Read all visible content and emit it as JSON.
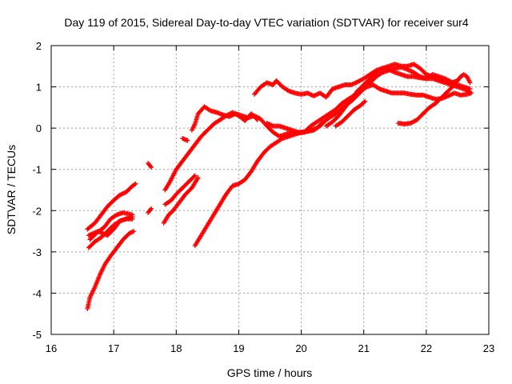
{
  "chart_data": {
    "type": "scatter",
    "title": "Day 119 of 2015, Sidereal Day-to-day VTEC variation (SDTVAR) for receiver sur4",
    "xlabel": "GPS time / hours",
    "ylabel": "SDTVAR / TECUs",
    "xlim": [
      16,
      23
    ],
    "ylim": [
      -5,
      2
    ],
    "xticks": [
      "16",
      "17",
      "18",
      "19",
      "20",
      "21",
      "22",
      "23"
    ],
    "yticks": [
      "-5",
      "-4",
      "-3",
      "-2",
      "-1",
      "0",
      "1",
      "2"
    ],
    "grid": true,
    "marker": "plus",
    "colors": {
      "series": "#ff0000",
      "grid": "#a0a0a0",
      "axis": "#000000"
    },
    "tracks": [
      [
        [
          16.58,
          -4.38
        ],
        [
          16.62,
          -4.1
        ],
        [
          16.7,
          -3.85
        ],
        [
          16.78,
          -3.55
        ],
        [
          16.86,
          -3.3
        ],
        [
          16.95,
          -3.1
        ],
        [
          17.05,
          -2.9
        ],
        [
          17.15,
          -2.7
        ],
        [
          17.25,
          -2.55
        ],
        [
          17.32,
          -2.5
        ]
      ],
      [
        [
          16.6,
          -2.9
        ],
        [
          16.7,
          -2.75
        ],
        [
          16.8,
          -2.65
        ],
        [
          16.9,
          -2.5
        ],
        [
          17.0,
          -2.35
        ],
        [
          17.1,
          -2.25
        ],
        [
          17.2,
          -2.2
        ],
        [
          17.3,
          -2.15
        ]
      ],
      [
        [
          16.6,
          -2.6
        ],
        [
          16.75,
          -2.5
        ],
        [
          16.9,
          -2.6
        ],
        [
          17.0,
          -2.45
        ],
        [
          17.1,
          -2.25
        ],
        [
          17.2,
          -2.2
        ],
        [
          17.3,
          -2.2
        ]
      ],
      [
        [
          16.58,
          -2.45
        ],
        [
          16.7,
          -2.3
        ],
        [
          16.8,
          -2.1
        ],
        [
          16.9,
          -1.9
        ],
        [
          17.0,
          -1.75
        ],
        [
          17.1,
          -1.62
        ],
        [
          17.2,
          -1.55
        ],
        [
          17.3,
          -1.4
        ],
        [
          17.35,
          -1.35
        ]
      ],
      [
        [
          16.62,
          -2.7
        ],
        [
          16.72,
          -2.55
        ],
        [
          16.85,
          -2.4
        ],
        [
          16.95,
          -2.2
        ],
        [
          17.05,
          -2.1
        ],
        [
          17.15,
          -2.05
        ],
        [
          17.3,
          -2.1
        ]
      ],
      [
        [
          17.55,
          -0.85
        ],
        [
          17.6,
          -0.95
        ]
      ],
      [
        [
          17.55,
          -2.05
        ],
        [
          17.6,
          -1.95
        ]
      ],
      [
        [
          17.8,
          -2.3
        ],
        [
          17.88,
          -2.1
        ],
        [
          17.95,
          -2.0
        ],
        [
          18.05,
          -1.8
        ],
        [
          18.15,
          -1.6
        ],
        [
          18.25,
          -1.45
        ],
        [
          18.35,
          -1.2
        ]
      ],
      [
        [
          17.82,
          -1.85
        ],
        [
          17.92,
          -1.75
        ],
        [
          18.0,
          -1.6
        ],
        [
          18.1,
          -1.45
        ],
        [
          18.2,
          -1.3
        ],
        [
          18.3,
          -1.15
        ]
      ],
      [
        [
          17.82,
          -1.5
        ],
        [
          17.9,
          -1.3
        ],
        [
          18.0,
          -1.0
        ],
        [
          18.1,
          -0.8
        ],
        [
          18.2,
          -0.6
        ],
        [
          18.3,
          -0.4
        ],
        [
          18.4,
          -0.2
        ],
        [
          18.5,
          -0.05
        ],
        [
          18.6,
          0.1
        ],
        [
          18.7,
          0.2
        ],
        [
          18.8,
          0.3
        ],
        [
          18.9,
          0.38
        ],
        [
          19.0,
          0.3
        ],
        [
          19.1,
          0.18
        ],
        [
          19.2,
          0.35
        ],
        [
          19.3,
          0.2
        ]
      ],
      [
        [
          18.1,
          -0.25
        ],
        [
          18.18,
          -0.3
        ]
      ],
      [
        [
          18.25,
          -0.05
        ],
        [
          18.3,
          0.1
        ],
        [
          18.35,
          0.35
        ],
        [
          18.45,
          0.52
        ],
        [
          18.55,
          0.42
        ],
        [
          18.65,
          0.38
        ],
        [
          18.75,
          0.32
        ],
        [
          18.85,
          0.28
        ],
        [
          18.95,
          0.35
        ],
        [
          19.05,
          0.3
        ],
        [
          19.15,
          0.25
        ],
        [
          19.25,
          0.3
        ],
        [
          19.35,
          0.22
        ],
        [
          19.45,
          0.05
        ],
        [
          19.55,
          -0.1
        ],
        [
          19.65,
          -0.2
        ],
        [
          19.75,
          -0.15
        ],
        [
          19.85,
          -0.1
        ],
        [
          19.95,
          -0.12
        ],
        [
          20.05,
          -0.1
        ],
        [
          20.15,
          -0.05
        ],
        [
          20.25,
          0.0
        ],
        [
          20.35,
          0.15
        ]
      ],
      [
        [
          18.3,
          -2.85
        ],
        [
          18.4,
          -2.6
        ],
        [
          18.5,
          -2.35
        ],
        [
          18.6,
          -2.1
        ],
        [
          18.7,
          -1.85
        ],
        [
          18.8,
          -1.6
        ],
        [
          18.9,
          -1.4
        ],
        [
          19.0,
          -1.35
        ],
        [
          19.1,
          -1.25
        ],
        [
          19.2,
          -1.05
        ],
        [
          19.3,
          -0.8
        ],
        [
          19.4,
          -0.6
        ],
        [
          19.5,
          -0.45
        ],
        [
          19.6,
          -0.35
        ],
        [
          19.7,
          -0.25
        ],
        [
          19.8,
          -0.2
        ],
        [
          19.9,
          -0.15
        ],
        [
          20.0,
          -0.1
        ],
        [
          20.1,
          -0.08
        ],
        [
          20.2,
          -0.05
        ],
        [
          20.3,
          0.05
        ],
        [
          20.4,
          0.2
        ],
        [
          20.5,
          0.3
        ],
        [
          20.6,
          0.4
        ],
        [
          20.7,
          0.55
        ],
        [
          20.8,
          0.65
        ],
        [
          20.9,
          0.8
        ],
        [
          21.0,
          0.95
        ],
        [
          21.1,
          1.1
        ],
        [
          21.2,
          1.25
        ],
        [
          21.3,
          1.35
        ],
        [
          21.4,
          1.4
        ],
        [
          21.5,
          1.45
        ],
        [
          21.6,
          1.48
        ],
        [
          21.7,
          1.42
        ],
        [
          21.8,
          1.35
        ],
        [
          21.9,
          1.25
        ],
        [
          22.0,
          1.2
        ],
        [
          22.1,
          1.2
        ],
        [
          22.2,
          1.15
        ],
        [
          22.3,
          1.1
        ],
        [
          22.4,
          1.05
        ],
        [
          22.5,
          1.0
        ],
        [
          22.6,
          0.95
        ],
        [
          22.7,
          0.88
        ]
      ],
      [
        [
          19.25,
          0.82
        ],
        [
          19.35,
          1.0
        ],
        [
          19.45,
          1.1
        ],
        [
          19.55,
          1.05
        ],
        [
          19.6,
          1.15
        ],
        [
          19.7,
          1.0
        ],
        [
          19.8,
          0.9
        ],
        [
          19.9,
          0.85
        ],
        [
          20.0,
          0.82
        ],
        [
          20.1,
          0.85
        ],
        [
          20.2,
          0.78
        ],
        [
          20.3,
          0.85
        ],
        [
          20.4,
          0.75
        ],
        [
          20.5,
          0.95
        ],
        [
          20.6,
          1.0
        ],
        [
          20.7,
          1.05
        ],
        [
          20.8,
          1.05
        ],
        [
          20.9,
          1.12
        ],
        [
          21.0,
          1.2
        ],
        [
          21.1,
          1.3
        ],
        [
          21.2,
          1.4
        ],
        [
          21.3,
          1.45
        ],
        [
          21.4,
          1.42
        ],
        [
          21.5,
          1.35
        ],
        [
          21.6,
          1.3
        ],
        [
          21.7,
          1.25
        ],
        [
          21.8,
          1.25
        ],
        [
          21.9,
          1.22
        ],
        [
          22.0,
          1.2
        ],
        [
          22.1,
          1.3
        ],
        [
          22.2,
          1.25
        ],
        [
          22.3,
          1.2
        ],
        [
          22.4,
          1.12
        ],
        [
          22.5,
          1.05
        ],
        [
          22.6,
          1.0
        ],
        [
          22.7,
          0.95
        ]
      ],
      [
        [
          19.45,
          0.12
        ],
        [
          19.55,
          0.05
        ],
        [
          19.65,
          0.05
        ],
        [
          19.75,
          0.0
        ],
        [
          19.85,
          -0.05
        ],
        [
          19.95,
          -0.1
        ],
        [
          20.05,
          -0.1
        ],
        [
          20.15,
          0.05
        ],
        [
          20.25,
          0.15
        ],
        [
          20.35,
          0.25
        ],
        [
          20.45,
          0.35
        ],
        [
          20.55,
          0.45
        ],
        [
          20.65,
          0.6
        ],
        [
          20.75,
          0.7
        ],
        [
          20.85,
          0.8
        ],
        [
          20.95,
          0.9
        ],
        [
          21.05,
          1.0
        ],
        [
          21.15,
          1.05
        ],
        [
          21.25,
          0.95
        ],
        [
          21.35,
          0.9
        ],
        [
          21.45,
          0.85
        ],
        [
          21.55,
          0.85
        ],
        [
          21.65,
          0.85
        ],
        [
          21.75,
          0.82
        ],
        [
          21.85,
          0.8
        ],
        [
          21.95,
          0.8
        ],
        [
          22.05,
          0.75
        ],
        [
          22.15,
          0.7
        ],
        [
          22.25,
          0.72
        ],
        [
          22.35,
          0.78
        ],
        [
          22.45,
          0.85
        ],
        [
          22.55,
          0.8
        ],
        [
          22.65,
          0.82
        ],
        [
          22.72,
          0.85
        ]
      ],
      [
        [
          20.4,
          0.05
        ],
        [
          20.5,
          0.15
        ],
        [
          20.6,
          0.3
        ],
        [
          20.7,
          0.5
        ],
        [
          20.8,
          0.7
        ],
        [
          20.9,
          0.9
        ],
        [
          21.0,
          1.05
        ],
        [
          21.1,
          1.2
        ],
        [
          21.2,
          1.35
        ],
        [
          21.3,
          1.45
        ],
        [
          21.4,
          1.5
        ],
        [
          21.5,
          1.55
        ],
        [
          21.6,
          1.5
        ],
        [
          21.7,
          1.5
        ],
        [
          21.8,
          1.55
        ],
        [
          21.9,
          1.45
        ],
        [
          22.0,
          1.3
        ],
        [
          22.1,
          1.25
        ],
        [
          22.2,
          1.22
        ],
        [
          22.3,
          1.15
        ],
        [
          22.4,
          1.1
        ],
        [
          22.5,
          1.15
        ],
        [
          22.55,
          1.25
        ],
        [
          22.6,
          1.3
        ],
        [
          22.65,
          1.25
        ],
        [
          22.7,
          1.1
        ]
      ],
      [
        [
          20.55,
          0.05
        ],
        [
          20.65,
          0.15
        ],
        [
          20.75,
          0.3
        ],
        [
          20.85,
          0.45
        ],
        [
          20.95,
          0.55
        ],
        [
          21.02,
          0.65
        ]
      ],
      [
        [
          21.55,
          0.12
        ],
        [
          21.65,
          0.1
        ],
        [
          21.75,
          0.12
        ],
        [
          21.85,
          0.2
        ],
        [
          21.95,
          0.35
        ],
        [
          22.05,
          0.5
        ],
        [
          22.15,
          0.6
        ],
        [
          22.25,
          0.75
        ],
        [
          22.35,
          0.9
        ],
        [
          22.45,
          1.05
        ],
        [
          22.5,
          1.15
        ]
      ]
    ]
  }
}
